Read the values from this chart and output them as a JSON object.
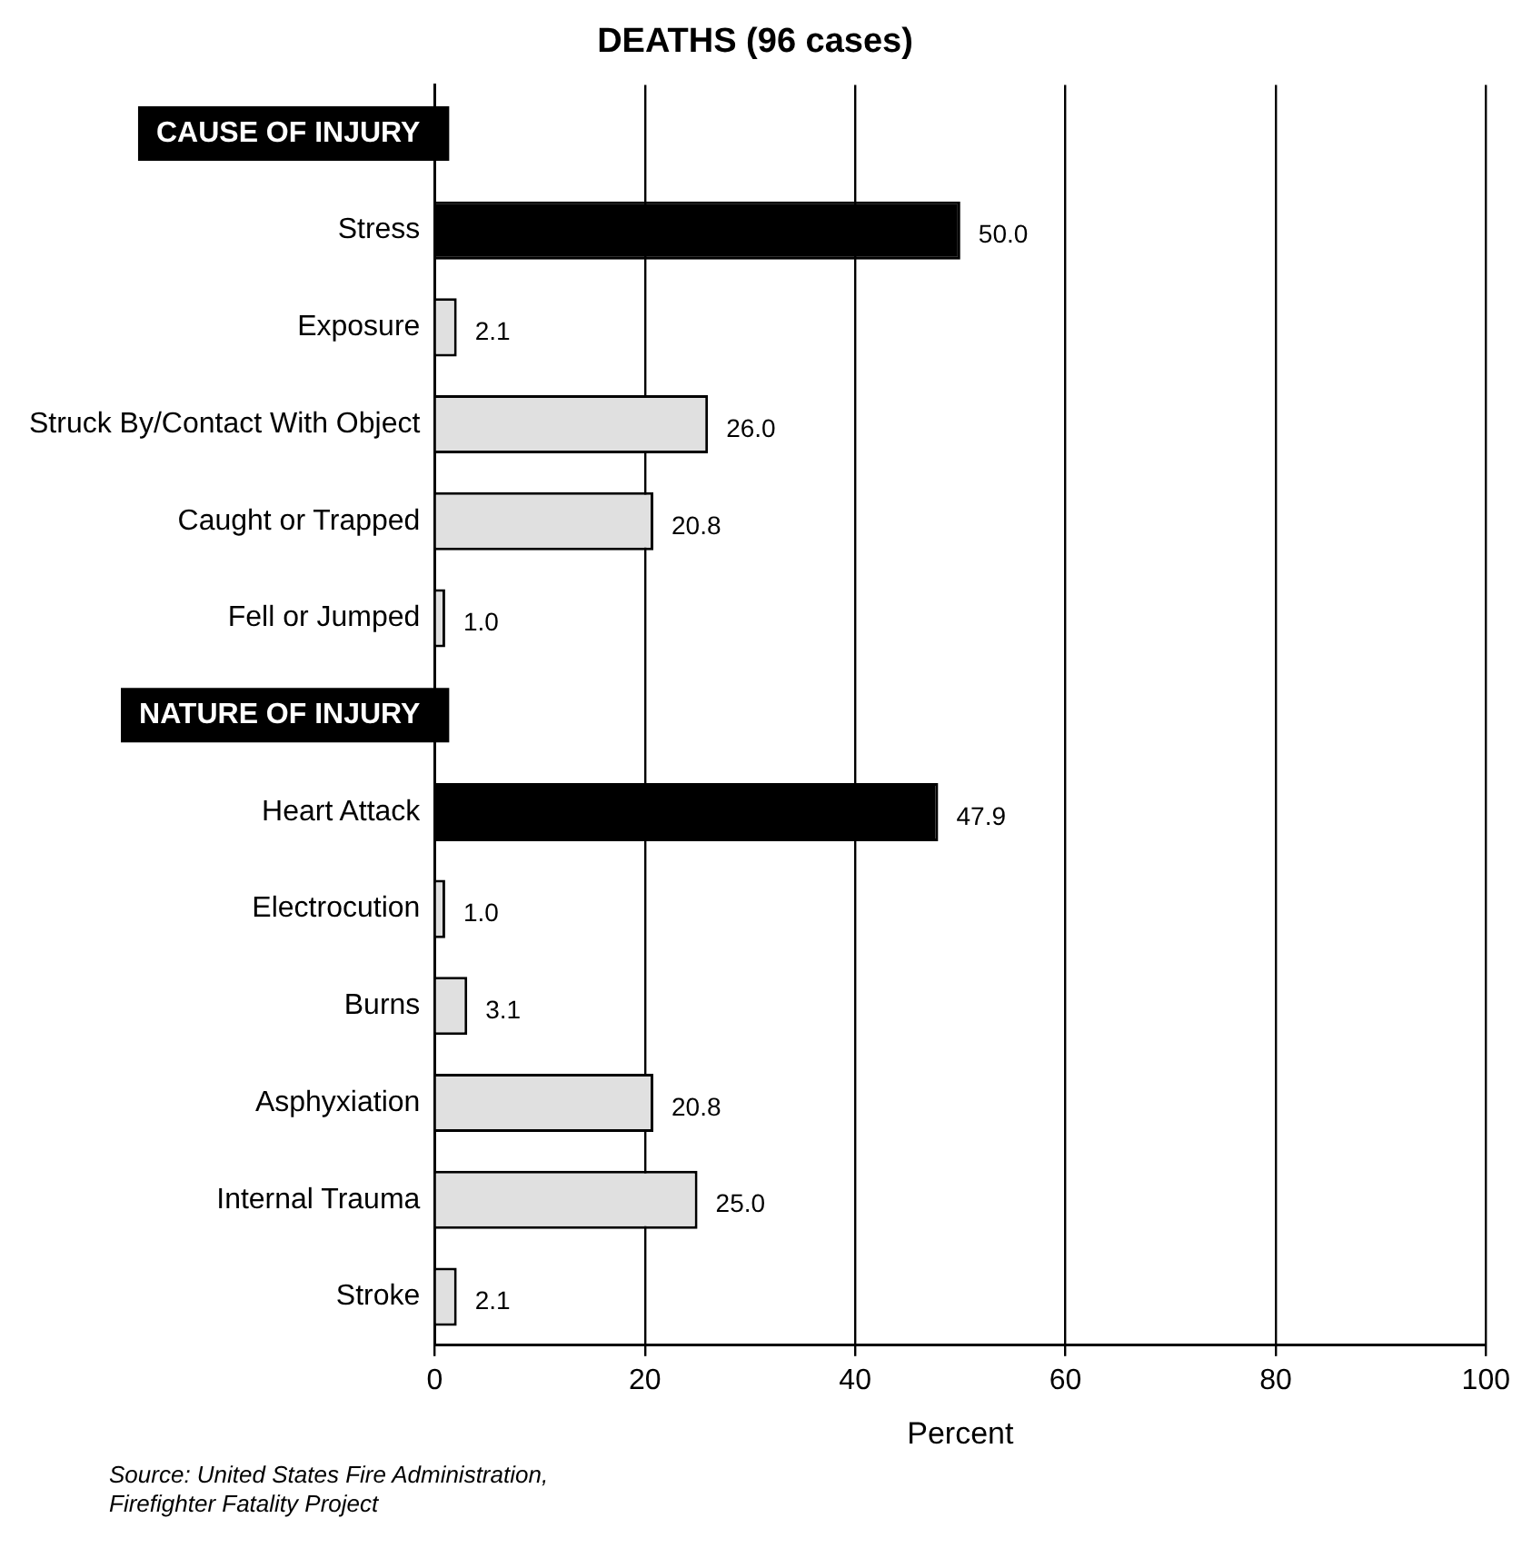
{
  "chart_data": {
    "type": "bar",
    "orientation": "horizontal",
    "title": "DEATHS (96 cases)",
    "xlabel": "Percent",
    "categories": [
      "CAUSE OF INJURY",
      "Stress",
      "Exposure",
      "Struck By/Contact With Object",
      "Caught or Trapped",
      "Fell or Jumped",
      "NATURE OF INJURY",
      "Heart Attack",
      "Electrocution",
      "Burns",
      "Asphyxiation",
      "Internal Trauma",
      "Stroke"
    ],
    "values": [
      null,
      50.0,
      2.1,
      26.0,
      20.8,
      1.0,
      null,
      47.9,
      1.0,
      3.1,
      20.8,
      25.0,
      2.1
    ],
    "value_labels": [
      null,
      "50.0",
      "2.1",
      "26.0",
      "20.8",
      "1.0",
      null,
      "47.9",
      "1.0",
      "3.1",
      "20.8",
      "25.0",
      "2.1"
    ],
    "colors": [
      "#000000",
      "#000000",
      "#e0e0e0",
      "#e0e0e0",
      "#e0e0e0",
      "#e0e0e0",
      "#000000",
      "#000000",
      "#e0e0e0",
      "#e0e0e0",
      "#e0e0e0",
      "#e0e0e0",
      "#e0e0e0"
    ],
    "xlim": [
      0,
      100
    ],
    "xticks": [
      0,
      20,
      40,
      60,
      80,
      100
    ],
    "grid": "x",
    "legend": false,
    "annotations": [
      "Source: United States Fire Administration,\nFirefighter Fatality Project"
    ]
  }
}
